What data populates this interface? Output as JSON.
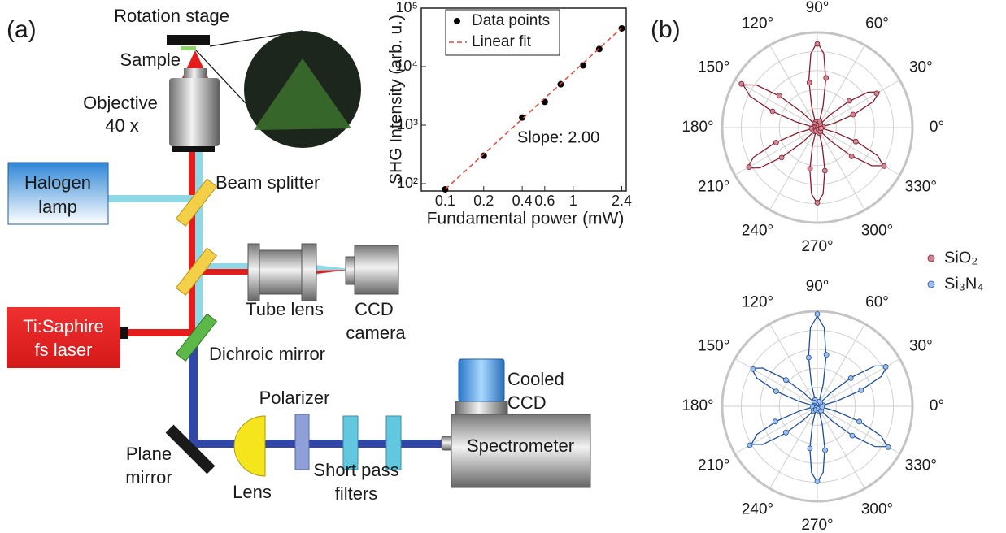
{
  "panel_labels": [
    "(a)",
    "(b)"
  ],
  "labels": {
    "rotation_stage": "Rotation stage",
    "sample": "Sample",
    "objective": [
      "Objective",
      "40 x"
    ],
    "halogen_lamp": [
      "Halogen",
      "lamp"
    ],
    "beam_splitter": "Beam splitter",
    "tube_lens": "Tube lens",
    "ccd_camera": [
      "CCD",
      "camera"
    ],
    "laser": [
      "Ti:Saphire",
      "fs laser"
    ],
    "dichroic_mirror": "Dichroic mirror",
    "plane_mirror": [
      "Plane",
      "mirror"
    ],
    "lens": "Lens",
    "polarizer": "Polarizer",
    "short_pass_filters": [
      "Short pass",
      "filters"
    ],
    "cooled_ccd": [
      "Cooled",
      "CCD"
    ],
    "spectrometer": "Spectrometer"
  },
  "chart_data": [
    {
      "type": "scatter",
      "x_label": "Fundamental power (mW)",
      "y_label": "SHG Intensity (arb. u.)",
      "annotation": "Slope: 2.00",
      "log_x": true,
      "log_y": true,
      "legend": "upper left",
      "xlim": [
        0.065,
        2.6
      ],
      "ylim": [
        75,
        100000
      ],
      "xticks": [
        0.1,
        0.2,
        0.4,
        0.6,
        1,
        2.4
      ],
      "yticks": [
        {
          "value": 100,
          "label": "10²"
        },
        {
          "value": 1000,
          "label": "10³"
        },
        {
          "value": 10000,
          "label": "10⁴"
        },
        {
          "value": 100000,
          "label": "10⁵"
        }
      ],
      "series": [
        {
          "name": "Data points",
          "color": "#000000",
          "mode": "markers",
          "x": [
            0.1,
            0.2,
            0.4,
            0.6,
            0.8,
            1.2,
            1.6,
            2.4
          ],
          "values": [
            80,
            300,
            1350,
            2500,
            5000,
            10500,
            20000,
            45000
          ]
        },
        {
          "name": "Linear fit",
          "color": "#e8463c",
          "mode": "line",
          "dash": true,
          "x": [
            0.1,
            2.4
          ],
          "values": [
            80,
            46080
          ]
        }
      ]
    },
    {
      "type": "polar",
      "rlim": [
        0,
        1
      ],
      "rticks": [
        0.2,
        0.4,
        0.6,
        0.8,
        1
      ],
      "thetaticks": [
        {
          "value": 0,
          "label": "0°"
        },
        {
          "value": 30,
          "label": "30°"
        },
        {
          "value": 60,
          "label": "60°"
        },
        {
          "value": 90,
          "label": "90°"
        },
        {
          "value": 120,
          "label": "120°"
        },
        {
          "value": 150,
          "label": "150°"
        },
        {
          "value": 180,
          "label": "180°"
        },
        {
          "value": 210,
          "label": "210°"
        },
        {
          "value": 240,
          "label": "240°"
        },
        {
          "value": 270,
          "label": "270°"
        },
        {
          "value": 300,
          "label": "300°"
        },
        {
          "value": 330,
          "label": "330°"
        }
      ],
      "series": [
        {
          "name": "SiO₂",
          "color": "#8b1a2b",
          "fill": "#c98a96",
          "mode": "markers",
          "theta": [
            0,
            10,
            20,
            30,
            40,
            50,
            60,
            70,
            80,
            90,
            100,
            110,
            120,
            130,
            140,
            150,
            160,
            170,
            180,
            190,
            200,
            210,
            220,
            230,
            240,
            250,
            260,
            270,
            280,
            290,
            300,
            310,
            320,
            330,
            340,
            350
          ],
          "values": [
            0.02,
            0.06,
            0.4,
            0.72,
            0.44,
            0.05,
            0.03,
            0.07,
            0.53,
            0.88,
            0.48,
            0.06,
            0.02,
            0.05,
            0.52,
            0.92,
            0.5,
            0.04,
            0.03,
            0.06,
            0.46,
            0.83,
            0.49,
            0.05,
            0.02,
            0.04,
            0.44,
            0.79,
            0.46,
            0.06,
            0.03,
            0.05,
            0.47,
            0.81,
            0.43,
            0.04
          ]
        },
        {
          "color": "#8b1a2b",
          "mode": "line",
          "theta": [
            0,
            5,
            10,
            15,
            20,
            25,
            30,
            35,
            40,
            45,
            50,
            55,
            60,
            65,
            70,
            75,
            80,
            85,
            90,
            95,
            100,
            105,
            110,
            115,
            120,
            125,
            130,
            135,
            140,
            145,
            150,
            155,
            160,
            165,
            170,
            175,
            180,
            185,
            190,
            195,
            200,
            205,
            210,
            215,
            220,
            225,
            230,
            235,
            240,
            245,
            250,
            255,
            260,
            265,
            270,
            275,
            280,
            285,
            290,
            295,
            300,
            305,
            310,
            315,
            320,
            325,
            330,
            335,
            340,
            345,
            350,
            355
          ],
          "values": [
            0,
            0.004,
            0.05,
            0.19,
            0.42,
            0.65,
            0.75,
            0.65,
            0.42,
            0.19,
            0.05,
            0.004,
            0,
            0.004,
            0.06,
            0.23,
            0.51,
            0.78,
            0.9,
            0.78,
            0.51,
            0.23,
            0.06,
            0.004,
            0,
            0.004,
            0.06,
            0.23,
            0.51,
            0.78,
            0.9,
            0.78,
            0.51,
            0.23,
            0.06,
            0.004,
            0,
            0.004,
            0.05,
            0.21,
            0.48,
            0.74,
            0.85,
            0.74,
            0.48,
            0.21,
            0.05,
            0.004,
            0,
            0.004,
            0.05,
            0.2,
            0.45,
            0.7,
            0.8,
            0.7,
            0.45,
            0.2,
            0.05,
            0.004,
            0,
            0.004,
            0.05,
            0.2,
            0.45,
            0.7,
            0.8,
            0.7,
            0.45,
            0.2,
            0.05,
            0.004
          ]
        }
      ]
    },
    {
      "type": "polar",
      "rlim": [
        0,
        1
      ],
      "rticks": [
        0.2,
        0.4,
        0.6,
        0.8,
        1
      ],
      "thetaticks": [
        {
          "value": 0,
          "label": "0°"
        },
        {
          "value": 30,
          "label": "30°"
        },
        {
          "value": 60,
          "label": "60°"
        },
        {
          "value": 90,
          "label": "90°"
        },
        {
          "value": 120,
          "label": "120°"
        },
        {
          "value": 150,
          "label": "150°"
        },
        {
          "value": 180,
          "label": "180°"
        },
        {
          "value": 210,
          "label": "210°"
        },
        {
          "value": 240,
          "label": "240°"
        },
        {
          "value": 270,
          "label": "270°"
        },
        {
          "value": 300,
          "label": "300°"
        },
        {
          "value": 330,
          "label": "330°"
        }
      ],
      "series": [
        {
          "name": "Si₃N₄",
          "color": "#1f4e9c",
          "fill": "#9fc0ea",
          "mode": "markers",
          "theta": [
            0,
            10,
            20,
            30,
            40,
            50,
            60,
            70,
            80,
            90,
            100,
            110,
            120,
            130,
            140,
            150,
            160,
            170,
            180,
            190,
            200,
            210,
            220,
            230,
            240,
            250,
            260,
            270,
            280,
            290,
            300,
            310,
            320,
            330,
            340,
            350
          ],
          "values": [
            0.02,
            0.06,
            0.49,
            0.83,
            0.46,
            0.05,
            0.03,
            0.05,
            0.55,
            0.97,
            0.52,
            0.07,
            0.02,
            0.05,
            0.43,
            0.78,
            0.46,
            0.04,
            0.03,
            0.05,
            0.47,
            0.82,
            0.43,
            0.06,
            0.02,
            0.04,
            0.45,
            0.79,
            0.47,
            0.05,
            0.03,
            0.06,
            0.48,
            0.86,
            0.47,
            0.05
          ]
        },
        {
          "color": "#1f4e9c",
          "mode": "line",
          "theta": [
            0,
            5,
            10,
            15,
            20,
            25,
            30,
            35,
            40,
            45,
            50,
            55,
            60,
            65,
            70,
            75,
            80,
            85,
            90,
            95,
            100,
            105,
            110,
            115,
            120,
            125,
            130,
            135,
            140,
            145,
            150,
            155,
            160,
            165,
            170,
            175,
            180,
            185,
            190,
            195,
            200,
            205,
            210,
            215,
            220,
            225,
            230,
            235,
            240,
            245,
            250,
            255,
            260,
            265,
            270,
            275,
            280,
            285,
            290,
            295,
            300,
            305,
            310,
            315,
            320,
            325,
            330,
            335,
            340,
            345,
            350,
            355
          ],
          "values": [
            0,
            0.004,
            0.05,
            0.21,
            0.48,
            0.74,
            0.85,
            0.74,
            0.48,
            0.21,
            0.05,
            0.004,
            0,
            0.004,
            0.06,
            0.24,
            0.53,
            0.83,
            0.95,
            0.83,
            0.53,
            0.24,
            0.06,
            0.004,
            0,
            0.004,
            0.05,
            0.2,
            0.45,
            0.7,
            0.8,
            0.7,
            0.45,
            0.2,
            0.05,
            0.004,
            0,
            0.004,
            0.05,
            0.2,
            0.45,
            0.7,
            0.8,
            0.7,
            0.45,
            0.2,
            0.05,
            0.004,
            0,
            0.004,
            0.05,
            0.2,
            0.45,
            0.7,
            0.8,
            0.7,
            0.45,
            0.2,
            0.05,
            0.004,
            0,
            0.004,
            0.05,
            0.21,
            0.48,
            0.74,
            0.85,
            0.74,
            0.48,
            0.21,
            0.05,
            0.004
          ]
        }
      ]
    }
  ]
}
